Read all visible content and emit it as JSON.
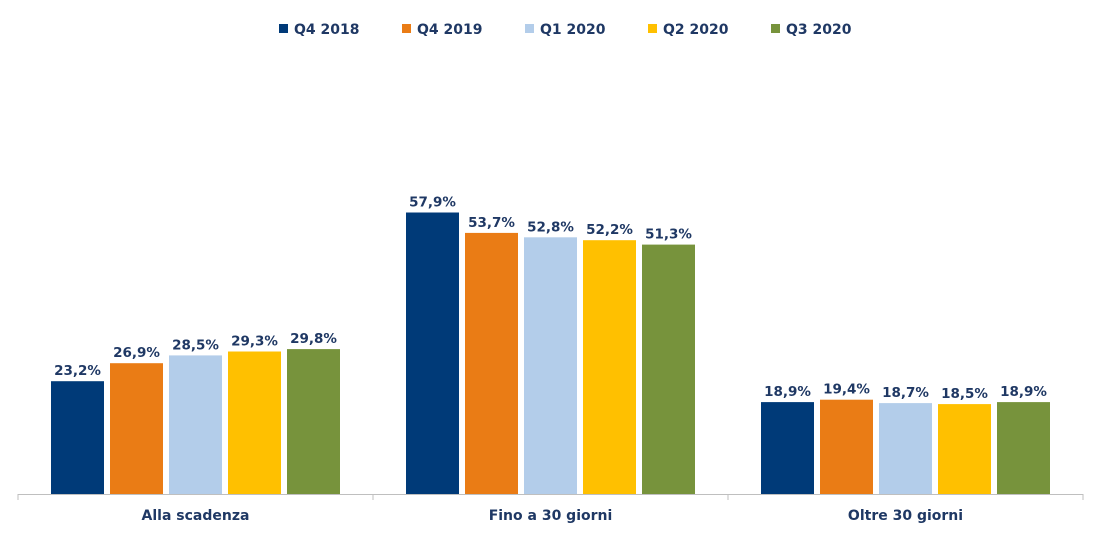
{
  "chart_data": {
    "type": "bar",
    "categories": [
      "Alla scadenza",
      "Fino a 30 giorni",
      "Oltre 30 giorni"
    ],
    "series": [
      {
        "name": "Q4 2018",
        "color": "#003a78",
        "values": [
          23.2,
          57.9,
          18.9
        ],
        "labels": [
          "23,2%",
          "57,9%",
          "18,9%"
        ]
      },
      {
        "name": "Q4 2019",
        "color": "#ea7c15",
        "values": [
          26.9,
          53.7,
          19.4
        ],
        "labels": [
          "26,9%",
          "53,7%",
          "19,4%"
        ]
      },
      {
        "name": "Q1 2020",
        "color": "#b3cdea",
        "values": [
          28.5,
          52.8,
          18.7
        ],
        "labels": [
          "28,5%",
          "52,8%",
          "18,7%"
        ]
      },
      {
        "name": "Q2 2020",
        "color": "#ffc000",
        "values": [
          29.3,
          52.2,
          18.5
        ],
        "labels": [
          "29,3%",
          "52,2%",
          "18,5%"
        ]
      },
      {
        "name": "Q3 2020",
        "color": "#77933c",
        "values": [
          29.8,
          51.3,
          18.9
        ],
        "labels": [
          "29,8%",
          "51,3%",
          "18,9%"
        ]
      }
    ],
    "ylim": [
      0,
      60
    ],
    "legend": "top",
    "grid": false,
    "title": "",
    "xlabel": "",
    "ylabel": ""
  }
}
